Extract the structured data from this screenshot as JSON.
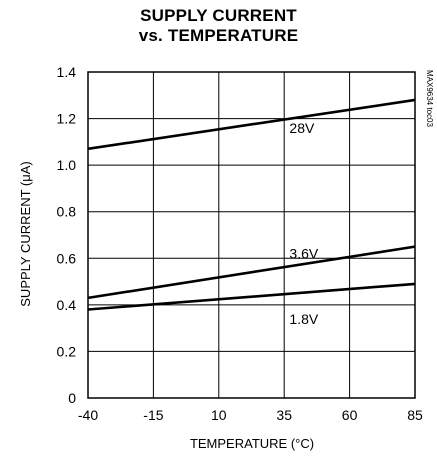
{
  "chart_data": {
    "type": "line",
    "title": [
      "SUPPLY CURRENT",
      "vs. TEMPERATURE"
    ],
    "xlabel": "TEMPERATURE (°C)",
    "ylabel": "SUPPLY CURRENT (μA)",
    "side_label": "MAX9634 toc03",
    "xlim": [
      -40,
      85
    ],
    "ylim": [
      0,
      1.4
    ],
    "x_ticks": [
      -40,
      -15,
      10,
      35,
      60,
      85
    ],
    "x_tick_labels": [
      "-40",
      "-15",
      "10",
      "35",
      "60",
      "85"
    ],
    "y_ticks": [
      0,
      0.2,
      0.4,
      0.6,
      0.8,
      1.0,
      1.2,
      1.4
    ],
    "y_tick_labels": [
      "0",
      "0.2",
      "0.4",
      "0.6",
      "0.8",
      "1.0",
      "1.2",
      "1.4"
    ],
    "grid": true,
    "series": [
      {
        "name": "28V",
        "x": [
          -40,
          85
        ],
        "y": [
          1.07,
          1.28
        ],
        "label_at": [
          37,
          1.16
        ]
      },
      {
        "name": "3.6V",
        "x": [
          -40,
          85
        ],
        "y": [
          0.43,
          0.65
        ],
        "label_at": [
          37,
          0.62
        ]
      },
      {
        "name": "1.8V",
        "x": [
          -40,
          85
        ],
        "y": [
          0.38,
          0.49
        ],
        "label_at": [
          37,
          0.34
        ]
      }
    ],
    "line_color": "#000000"
  }
}
